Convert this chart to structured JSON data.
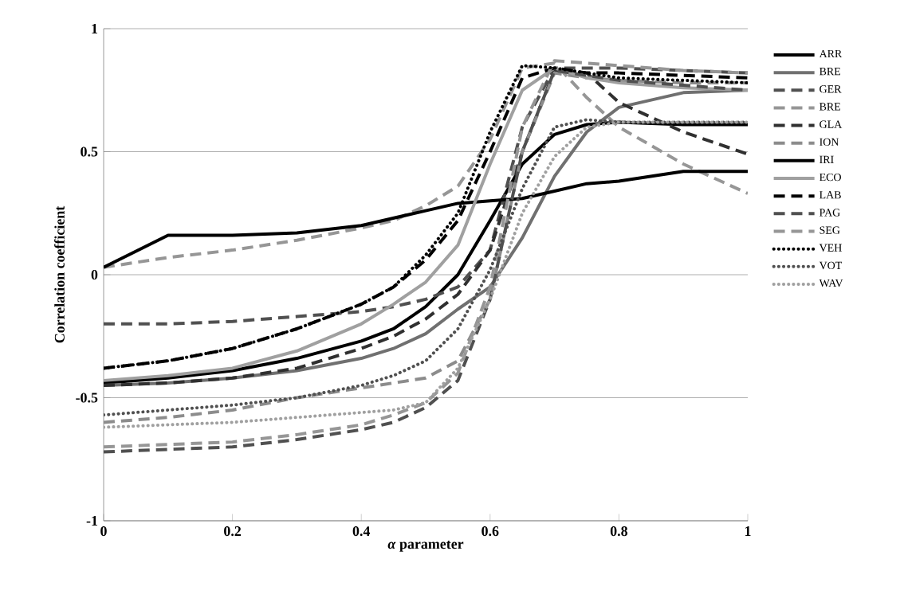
{
  "chart_data": {
    "type": "line",
    "xlabel": "*α* parameter",
    "ylabel": "Correlation coefficient",
    "x": [
      0,
      0.1,
      0.2,
      0.3,
      0.4,
      0.45,
      0.5,
      0.55,
      0.6,
      0.65,
      0.7,
      0.75,
      0.8,
      0.9,
      1
    ],
    "xlim": [
      0,
      1
    ],
    "ylim": [
      -1,
      1
    ],
    "xticks": [
      0,
      0.2,
      0.4,
      0.6,
      0.8,
      1
    ],
    "yticks": [
      -1,
      -0.5,
      0,
      0.5,
      1
    ],
    "grid": "y",
    "legend": "right",
    "marker": "none",
    "series": [
      {
        "name": "ARR",
        "color": "#000000",
        "line_style": "solid",
        "values": [
          -0.44,
          -0.42,
          -0.39,
          -0.34,
          -0.27,
          -0.22,
          -0.13,
          0.0,
          0.22,
          0.45,
          0.57,
          0.61,
          0.62,
          0.61,
          0.61
        ]
      },
      {
        "name": "BRE",
        "color": "#707070",
        "line_style": "solid",
        "values": [
          -0.45,
          -0.44,
          -0.42,
          -0.39,
          -0.34,
          -0.3,
          -0.24,
          -0.14,
          -0.05,
          0.15,
          0.4,
          0.58,
          0.68,
          0.74,
          0.75
        ]
      },
      {
        "name": "GER",
        "color": "#505050",
        "line_style": "dashed",
        "values": [
          -0.2,
          -0.2,
          -0.19,
          -0.17,
          -0.15,
          -0.13,
          -0.1,
          -0.05,
          0.1,
          0.6,
          0.84,
          0.84,
          0.84,
          0.83,
          0.82
        ]
      },
      {
        "name": "BRE",
        "color": "#969696",
        "line_style": "dashed",
        "values": [
          0.03,
          0.07,
          0.1,
          0.14,
          0.19,
          0.22,
          0.28,
          0.36,
          0.55,
          0.84,
          0.86,
          0.72,
          0.6,
          0.45,
          0.33
        ]
      },
      {
        "name": "GLA",
        "color": "#303030",
        "line_style": "dashed",
        "values": [
          -0.45,
          -0.44,
          -0.42,
          -0.38,
          -0.3,
          -0.25,
          -0.18,
          -0.08,
          0.1,
          0.5,
          0.83,
          0.82,
          0.7,
          0.58,
          0.49
        ]
      },
      {
        "name": "ION",
        "color": "#8c8c8c",
        "line_style": "dashed",
        "values": [
          -0.6,
          -0.58,
          -0.55,
          -0.5,
          -0.46,
          -0.44,
          -0.42,
          -0.35,
          -0.1,
          0.5,
          0.82,
          0.8,
          0.79,
          0.78,
          0.78
        ]
      },
      {
        "name": "IRI",
        "color": "#000000",
        "line_style": "solid",
        "values": [
          0.03,
          0.16,
          0.16,
          0.17,
          0.2,
          0.23,
          0.26,
          0.29,
          0.3,
          0.31,
          0.34,
          0.37,
          0.38,
          0.42,
          0.42
        ]
      },
      {
        "name": "ECO",
        "color": "#a0a0a0",
        "line_style": "solid",
        "values": [
          -0.43,
          -0.41,
          -0.38,
          -0.31,
          -0.2,
          -0.12,
          -0.03,
          0.12,
          0.45,
          0.75,
          0.84,
          0.8,
          0.78,
          0.76,
          0.75
        ]
      },
      {
        "name": "LAB",
        "color": "#000000",
        "line_style": "dashed",
        "values": [
          -0.38,
          -0.35,
          -0.3,
          -0.22,
          -0.12,
          -0.05,
          0.06,
          0.22,
          0.5,
          0.8,
          0.84,
          0.82,
          0.82,
          0.81,
          0.8
        ]
      },
      {
        "name": "PAG",
        "color": "#505050",
        "line_style": "dashed",
        "values": [
          -0.72,
          -0.71,
          -0.7,
          -0.67,
          -0.63,
          -0.6,
          -0.54,
          -0.43,
          -0.1,
          0.5,
          0.83,
          0.81,
          0.79,
          0.77,
          0.75
        ]
      },
      {
        "name": "SEG",
        "color": "#969696",
        "line_style": "dashed",
        "values": [
          -0.7,
          -0.69,
          -0.68,
          -0.65,
          -0.61,
          -0.57,
          -0.52,
          -0.4,
          -0.05,
          0.6,
          0.87,
          0.86,
          0.85,
          0.83,
          0.82
        ]
      },
      {
        "name": "VEH",
        "color": "#000000",
        "line_style": "dotted",
        "values": [
          -0.38,
          -0.35,
          -0.3,
          -0.22,
          -0.12,
          -0.05,
          0.08,
          0.25,
          0.58,
          0.85,
          0.84,
          0.82,
          0.8,
          0.79,
          0.78
        ]
      },
      {
        "name": "VOT",
        "color": "#505050",
        "line_style": "dotted",
        "values": [
          -0.57,
          -0.55,
          -0.53,
          -0.5,
          -0.45,
          -0.41,
          -0.35,
          -0.22,
          0.02,
          0.35,
          0.6,
          0.63,
          0.62,
          0.62,
          0.62
        ]
      },
      {
        "name": "WAV",
        "color": "#a0a0a0",
        "line_style": "dotted",
        "values": [
          -0.62,
          -0.61,
          -0.6,
          -0.58,
          -0.56,
          -0.55,
          -0.52,
          -0.38,
          -0.1,
          0.25,
          0.48,
          0.6,
          0.62,
          0.62,
          0.62
        ]
      }
    ]
  }
}
